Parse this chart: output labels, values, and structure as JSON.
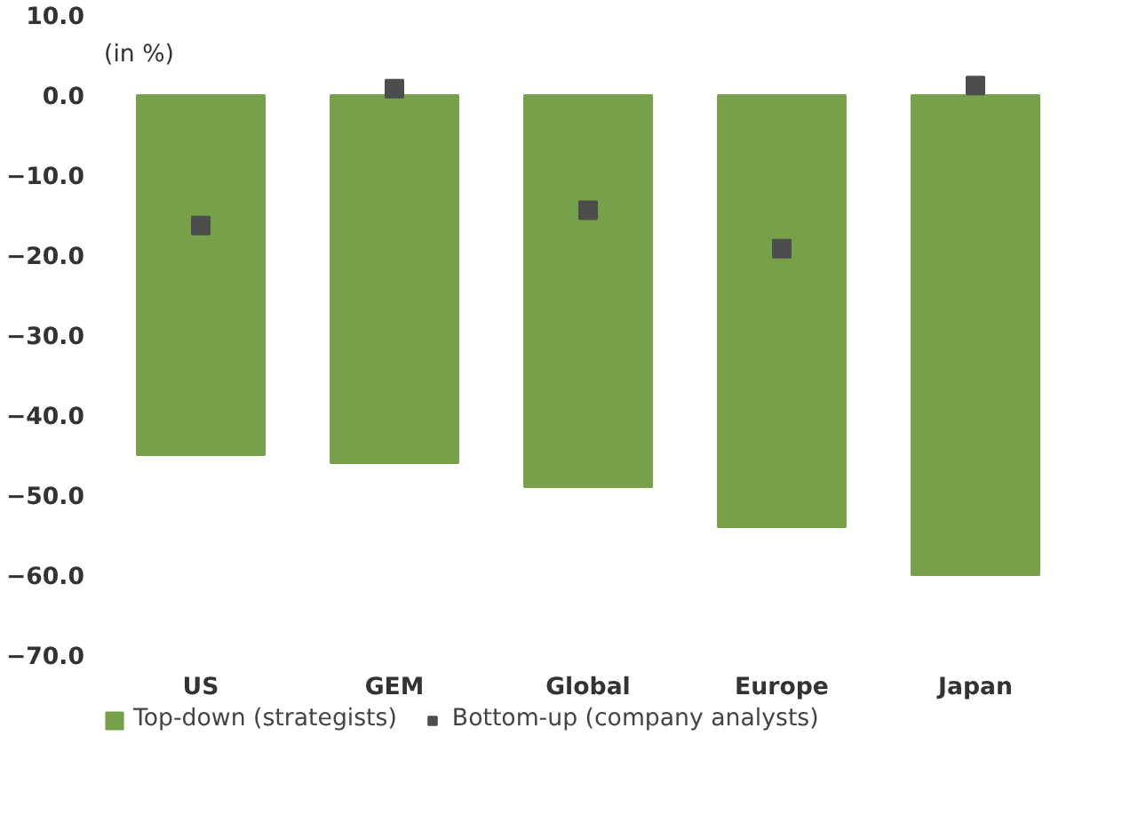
{
  "chart_data": {
    "type": "bar",
    "categories": [
      "US",
      "GEM",
      "Global",
      "Europe",
      "Japan"
    ],
    "series": [
      {
        "name": "Top-down (strategists)",
        "color": "#76a04a",
        "values": [
          -45,
          -46,
          -49,
          -54,
          -60
        ]
      },
      {
        "name": "Bottom-up (company analysts)",
        "type": "scatter",
        "color": "#4d4d4d",
        "values": [
          -16.3,
          0.8,
          -14.4,
          -19.2,
          1.2
        ]
      }
    ],
    "ylim": [
      -70,
      10
    ],
    "yticks": [
      {
        "value": 10,
        "label": "10.0"
      },
      {
        "value": 0,
        "label": "0.0"
      },
      {
        "value": -10,
        "label": "−10.0"
      },
      {
        "value": -20,
        "label": "−20.0"
      },
      {
        "value": -30,
        "label": "−30.0"
      },
      {
        "value": -40,
        "label": "−40.0"
      },
      {
        "value": -50,
        "label": "−50.0"
      },
      {
        "value": -60,
        "label": "−60.0"
      },
      {
        "value": -70,
        "label": "−70.0"
      }
    ],
    "annotations": [
      "(in %)"
    ],
    "grid": false,
    "legend": "bottom",
    "marker": "square"
  }
}
